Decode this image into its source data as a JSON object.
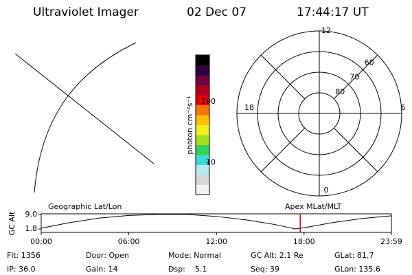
{
  "header": {
    "title": "Ultraviolet Imager",
    "date": "02 Dec 07",
    "time": "17:44:17 UT"
  },
  "colorbar": {
    "label": "photon cm⁻²s⁻¹",
    "log": true,
    "clim": [
      3,
      580
    ],
    "ticks": [
      10,
      100
    ],
    "colors": [
      "#f4f4f4",
      "#d8d8d8",
      "#b8e8f0",
      "#40d8d8",
      "#30d060",
      "#a0e020",
      "#f0f020",
      "#f8c000",
      "#f07800",
      "#e80000",
      "#b00020",
      "#700040",
      "#300040",
      "#000000"
    ]
  },
  "polar": {
    "rlim": [
      90,
      50
    ],
    "rticks": [
      80,
      70,
      60
    ],
    "mlt_ticks": [
      12,
      18,
      6,
      0
    ]
  },
  "timeline": {
    "ylabel": "GC Alt",
    "left_label": "Geographic Lat/Lon",
    "right_label": "Apex MLat/MLT",
    "ylim": [
      0.1,
      9.3
    ],
    "yticks": [
      {
        "value": 9.0,
        "label": "9.0"
      },
      1.8
    ],
    "xlim": [
      0,
      23.983
    ],
    "xticks": [
      {
        "value": 0,
        "label": "00:00"
      },
      {
        "value": 6,
        "label": "06:00"
      },
      {
        "value": 12,
        "label": "12:00"
      },
      {
        "value": 18,
        "label": "18:00"
      },
      {
        "value": 23.983,
        "label": "23:59"
      }
    ],
    "x": [
      0,
      2,
      4,
      6,
      8,
      10,
      12,
      14,
      16,
      17.4,
      18,
      20,
      22,
      23.983
    ],
    "y": [
      2.2,
      5.0,
      7.2,
      8.5,
      9.0,
      9.0,
      8.0,
      6.3,
      4.0,
      1.8,
      2.4,
      5.0,
      7.0,
      8.3
    ],
    "marker": 17.738,
    "marker_color": "#e00000"
  },
  "info": {
    "rows": [
      [
        "Flt: 1356",
        "Door: Open",
        "Mode: Normal",
        "GC Alt: 2.1 Re",
        "GLat: 81.7"
      ],
      [
        "IP: 36.0",
        "Gain: 14",
        "Dsp:    5.1",
        "Seq: 39",
        "GLon: 135.6"
      ]
    ]
  }
}
